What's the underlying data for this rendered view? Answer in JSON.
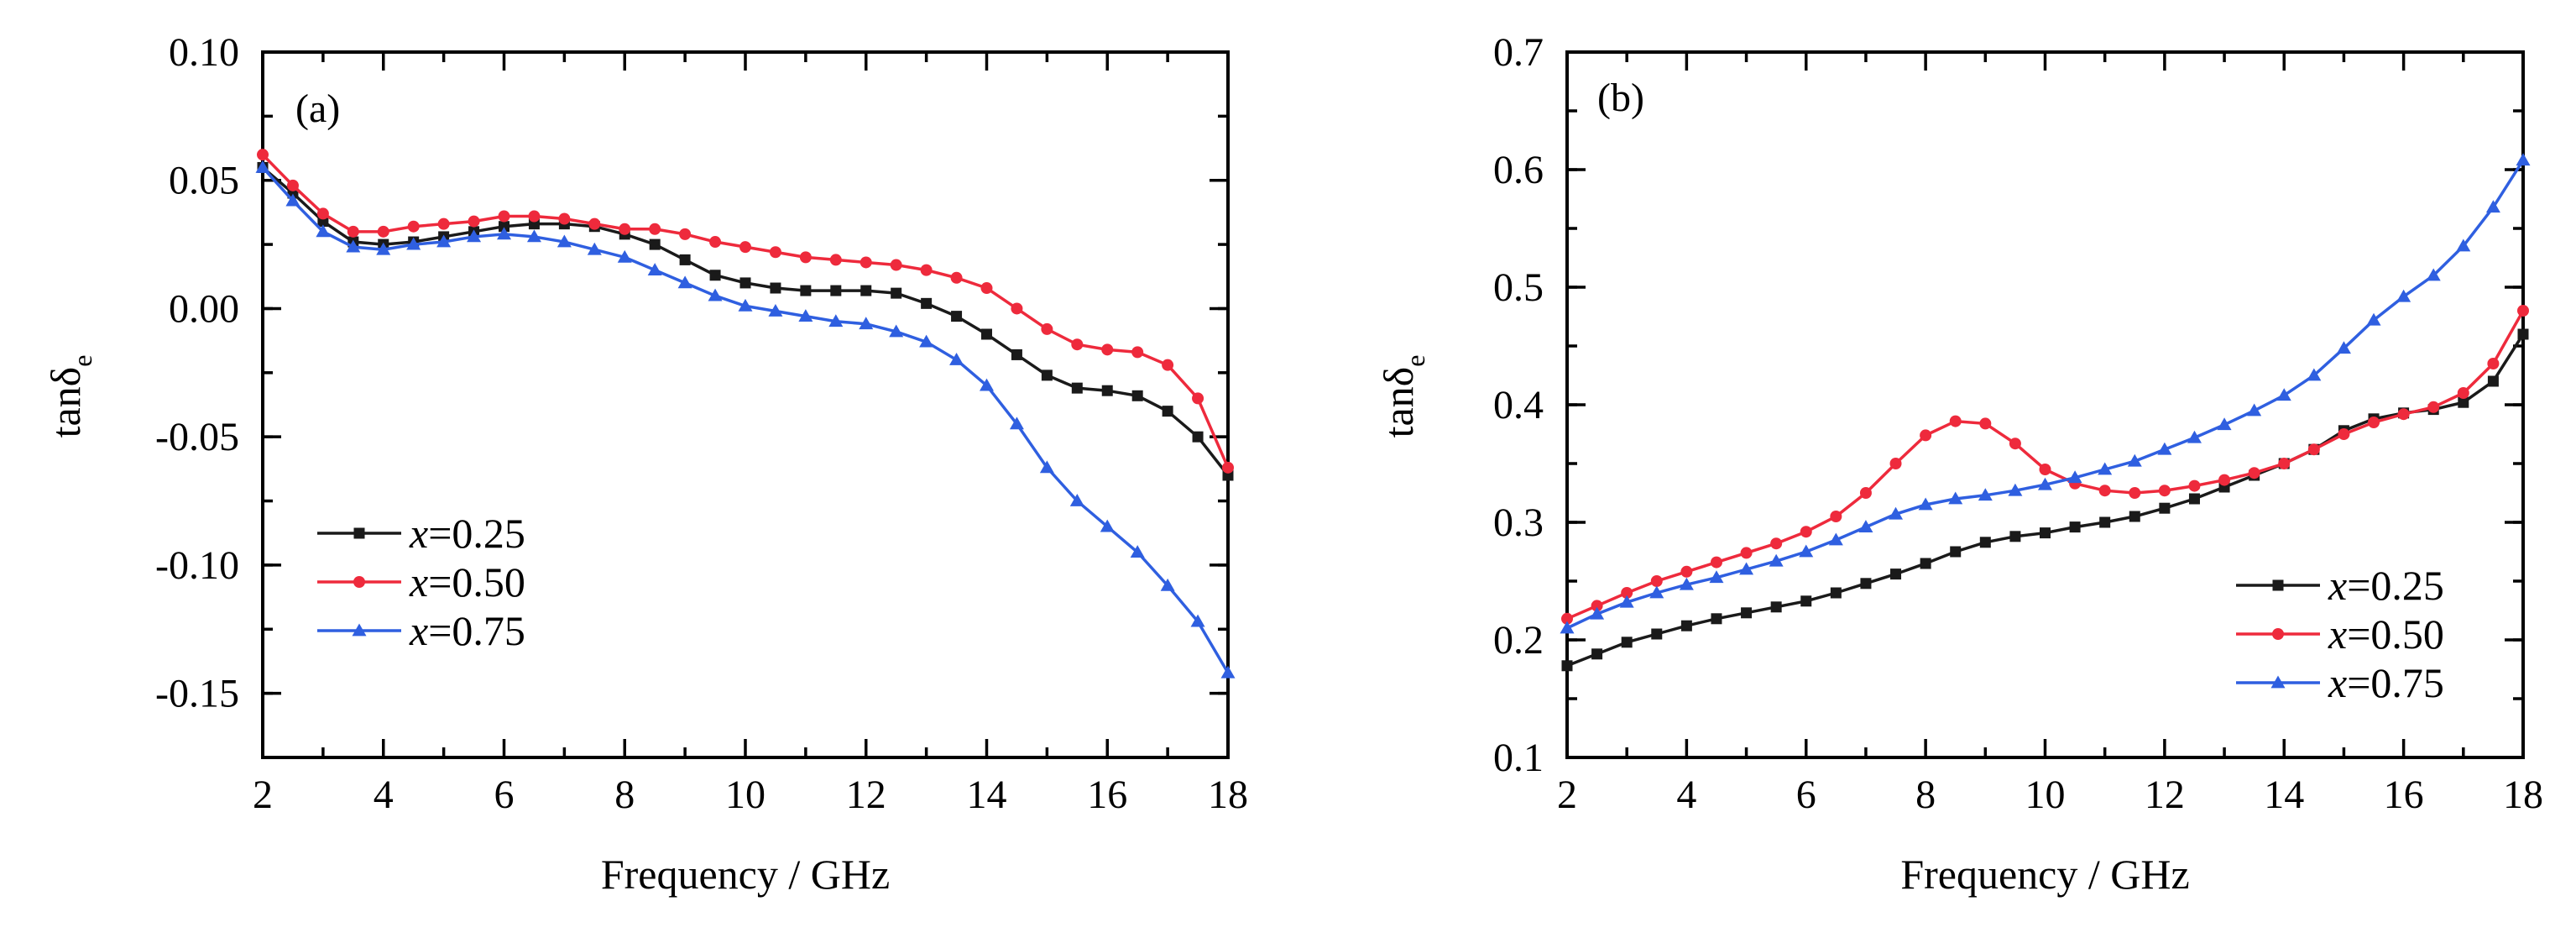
{
  "colors": {
    "x025": "#1a1a1a",
    "x050": "#ee2a3c",
    "x075": "#2f5fe0"
  },
  "chart_data": [
    {
      "panel": "(a)",
      "type": "line",
      "xlabel": "Frequency / GHz",
      "ylabel_main": "tanδ",
      "ylabel_sub": "e",
      "xlim": [
        2,
        18
      ],
      "ylim": [
        -0.175,
        0.1
      ],
      "xticks": [
        2,
        4,
        6,
        8,
        10,
        12,
        14,
        16,
        18
      ],
      "yticks": [
        -0.15,
        -0.1,
        -0.05,
        0.0,
        0.05,
        0.1
      ],
      "ytick_labels": [
        "-0.15",
        "-0.10",
        "-0.05",
        "0.00",
        "0.05",
        "0.10"
      ],
      "legend_position": "lower-left",
      "series": [
        {
          "name_var": "x",
          "name_val": "=0.25",
          "marker": "square",
          "color_key": "x025",
          "x": [
            2,
            2.5,
            3,
            3.5,
            4,
            4.5,
            5,
            5.5,
            6,
            6.5,
            7,
            7.5,
            8,
            8.5,
            9,
            9.5,
            10,
            10.5,
            11,
            11.5,
            12,
            12.5,
            13,
            13.5,
            14,
            14.5,
            15,
            15.5,
            16,
            16.5,
            17,
            17.5,
            18
          ],
          "y": [
            0.055,
            0.045,
            0.034,
            0.026,
            0.025,
            0.026,
            0.028,
            0.03,
            0.032,
            0.033,
            0.033,
            0.032,
            0.029,
            0.025,
            0.019,
            0.013,
            0.01,
            0.008,
            0.007,
            0.007,
            0.007,
            0.006,
            0.002,
            -0.003,
            -0.01,
            -0.018,
            -0.026,
            -0.031,
            -0.032,
            -0.034,
            -0.04,
            -0.05,
            -0.065
          ]
        },
        {
          "name_var": "x",
          "name_val": "=0.50",
          "marker": "circle",
          "color_key": "x050",
          "x": [
            2,
            2.5,
            3,
            3.5,
            4,
            4.5,
            5,
            5.5,
            6,
            6.5,
            7,
            7.5,
            8,
            8.5,
            9,
            9.5,
            10,
            10.5,
            11,
            11.5,
            12,
            12.5,
            13,
            13.5,
            14,
            14.5,
            15,
            15.5,
            16,
            16.5,
            17,
            17.5,
            18
          ],
          "y": [
            0.06,
            0.048,
            0.037,
            0.03,
            0.03,
            0.032,
            0.033,
            0.034,
            0.036,
            0.036,
            0.035,
            0.033,
            0.031,
            0.031,
            0.029,
            0.026,
            0.024,
            0.022,
            0.02,
            0.019,
            0.018,
            0.017,
            0.015,
            0.012,
            0.008,
            0.0,
            -0.008,
            -0.014,
            -0.016,
            -0.017,
            -0.022,
            -0.035,
            -0.062
          ]
        },
        {
          "name_var": "x",
          "name_val": "=0.75",
          "marker": "triangle",
          "color_key": "x075",
          "x": [
            2,
            2.5,
            3,
            3.5,
            4,
            4.5,
            5,
            5.5,
            6,
            6.5,
            7,
            7.5,
            8,
            8.5,
            9,
            9.5,
            10,
            10.5,
            11,
            11.5,
            12,
            12.5,
            13,
            13.5,
            14,
            14.5,
            15,
            15.5,
            16,
            16.5,
            17,
            17.5,
            18
          ],
          "y": [
            0.055,
            0.042,
            0.03,
            0.024,
            0.023,
            0.025,
            0.026,
            0.028,
            0.029,
            0.028,
            0.026,
            0.023,
            0.02,
            0.015,
            0.01,
            0.005,
            0.001,
            -0.001,
            -0.003,
            -0.005,
            -0.006,
            -0.009,
            -0.013,
            -0.02,
            -0.03,
            -0.045,
            -0.062,
            -0.075,
            -0.085,
            -0.095,
            -0.108,
            -0.122,
            -0.142
          ]
        }
      ]
    },
    {
      "panel": "(b)",
      "type": "line",
      "xlabel": "Frequency / GHz",
      "ylabel_main": "tanδ",
      "ylabel_sub": "e",
      "xlim": [
        2,
        18
      ],
      "ylim": [
        0.1,
        0.7
      ],
      "xticks": [
        2,
        4,
        6,
        8,
        10,
        12,
        14,
        16,
        18
      ],
      "yticks": [
        0.1,
        0.2,
        0.3,
        0.4,
        0.5,
        0.6,
        0.7
      ],
      "ytick_labels": [
        "0.1",
        "0.2",
        "0.3",
        "0.4",
        "0.5",
        "0.6",
        "0.7"
      ],
      "legend_position": "lower-right",
      "series": [
        {
          "name_var": "x",
          "name_val": "=0.25",
          "marker": "square",
          "color_key": "x025",
          "x": [
            2,
            2.5,
            3,
            3.5,
            4,
            4.5,
            5,
            5.5,
            6,
            6.5,
            7,
            7.5,
            8,
            8.5,
            9,
            9.5,
            10,
            10.5,
            11,
            11.5,
            12,
            12.5,
            13,
            13.5,
            14,
            14.5,
            15,
            15.5,
            16,
            16.5,
            17,
            17.5,
            18
          ],
          "y": [
            0.178,
            0.188,
            0.198,
            0.205,
            0.212,
            0.218,
            0.223,
            0.228,
            0.233,
            0.24,
            0.248,
            0.256,
            0.265,
            0.275,
            0.283,
            0.288,
            0.291,
            0.296,
            0.3,
            0.305,
            0.312,
            0.32,
            0.33,
            0.34,
            0.35,
            0.362,
            0.378,
            0.388,
            0.393,
            0.396,
            0.402,
            0.42,
            0.46
          ]
        },
        {
          "name_var": "x",
          "name_val": "=0.50",
          "marker": "circle",
          "color_key": "x050",
          "x": [
            2,
            2.5,
            3,
            3.5,
            4,
            4.5,
            5,
            5.5,
            6,
            6.5,
            7,
            7.5,
            8,
            8.5,
            9,
            9.5,
            10,
            10.5,
            11,
            11.5,
            12,
            12.5,
            13,
            13.5,
            14,
            14.5,
            15,
            15.5,
            16,
            16.5,
            17,
            17.5,
            18
          ],
          "y": [
            0.218,
            0.229,
            0.24,
            0.25,
            0.258,
            0.266,
            0.274,
            0.282,
            0.292,
            0.305,
            0.325,
            0.35,
            0.374,
            0.386,
            0.384,
            0.367,
            0.345,
            0.333,
            0.327,
            0.325,
            0.327,
            0.331,
            0.336,
            0.342,
            0.35,
            0.362,
            0.375,
            0.385,
            0.392,
            0.398,
            0.41,
            0.435,
            0.48
          ]
        },
        {
          "name_var": "x",
          "name_val": "=0.75",
          "marker": "triangle",
          "color_key": "x075",
          "x": [
            2,
            2.5,
            3,
            3.5,
            4,
            4.5,
            5,
            5.5,
            6,
            6.5,
            7,
            7.5,
            8,
            8.5,
            9,
            9.5,
            10,
            10.5,
            11,
            11.5,
            12,
            12.5,
            13,
            13.5,
            14,
            14.5,
            15,
            15.5,
            16,
            16.5,
            17,
            17.5,
            18
          ],
          "y": [
            0.21,
            0.222,
            0.232,
            0.24,
            0.247,
            0.253,
            0.26,
            0.267,
            0.275,
            0.285,
            0.296,
            0.307,
            0.315,
            0.32,
            0.323,
            0.327,
            0.332,
            0.338,
            0.345,
            0.352,
            0.362,
            0.372,
            0.383,
            0.395,
            0.408,
            0.425,
            0.448,
            0.472,
            0.492,
            0.51,
            0.535,
            0.568,
            0.608
          ]
        }
      ]
    }
  ]
}
